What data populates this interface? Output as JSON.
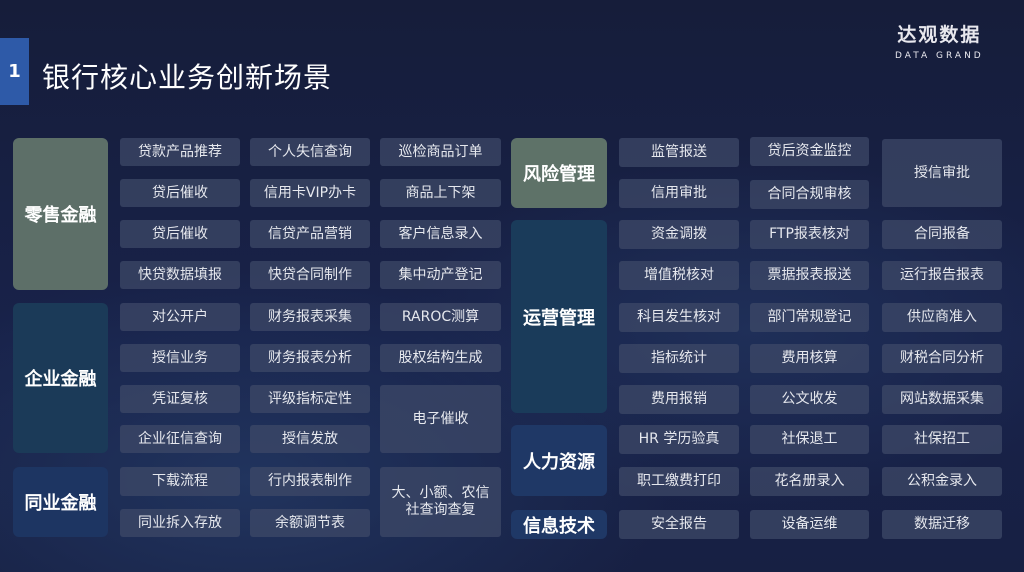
{
  "header": {
    "number": "1",
    "title": "银行核心业务创新场景"
  },
  "logo": {
    "cn": "达观数据",
    "en": "DATA GRAND"
  },
  "colors": {
    "retail": "#5d6f68",
    "risk": "#5e7268",
    "corporate": "#1b3a58",
    "ops": "#1a3b5a",
    "interbank": "#1d3562",
    "hr": "#1f3866",
    "it": "#1f3866"
  },
  "categories": [
    "零售金融",
    "企业金融",
    "同业金融",
    "风险管理",
    "运营管理",
    "人力资源",
    "信息技术"
  ],
  "cells": [
    "贷款产品推荐",
    "个人失信查询",
    "巡检商品订单",
    "贷后催收",
    "信用卡VIP办卡",
    "商品上下架",
    "贷后催收",
    "信贷产品营销",
    "客户信息录入",
    "快贷数据填报",
    "快贷合同制作",
    "集中动产登记",
    "对公开户",
    "财务报表采集",
    "RAROC测算",
    "授信业务",
    "财务报表分析",
    "股权结构生成",
    "凭证复核",
    "评级指标定性",
    "电子催收",
    "企业征信查询",
    "授信发放",
    "下载流程",
    "行内报表制作",
    "大、小额、农信社查询查复",
    "同业拆入存放",
    "余额调节表",
    "监管报送",
    "贷后资金监控",
    "授信审批",
    "信用审批",
    "合同合规审核",
    "资金调拨",
    "FTP报表核对",
    "合同报备",
    "增值税核对",
    "票据报表报送",
    "运行报告报表",
    "科目发生核对",
    "部门常规登记",
    "供应商准入",
    "指标统计",
    "费用核算",
    "财税合同分析",
    "费用报销",
    "公文收发",
    "网站数据采集",
    "HR 学历验真",
    "社保退工",
    "社保招工",
    "职工缴费打印",
    "花名册录入",
    "公积金录入",
    "安全报告",
    "设备运维",
    "数据迁移"
  ]
}
